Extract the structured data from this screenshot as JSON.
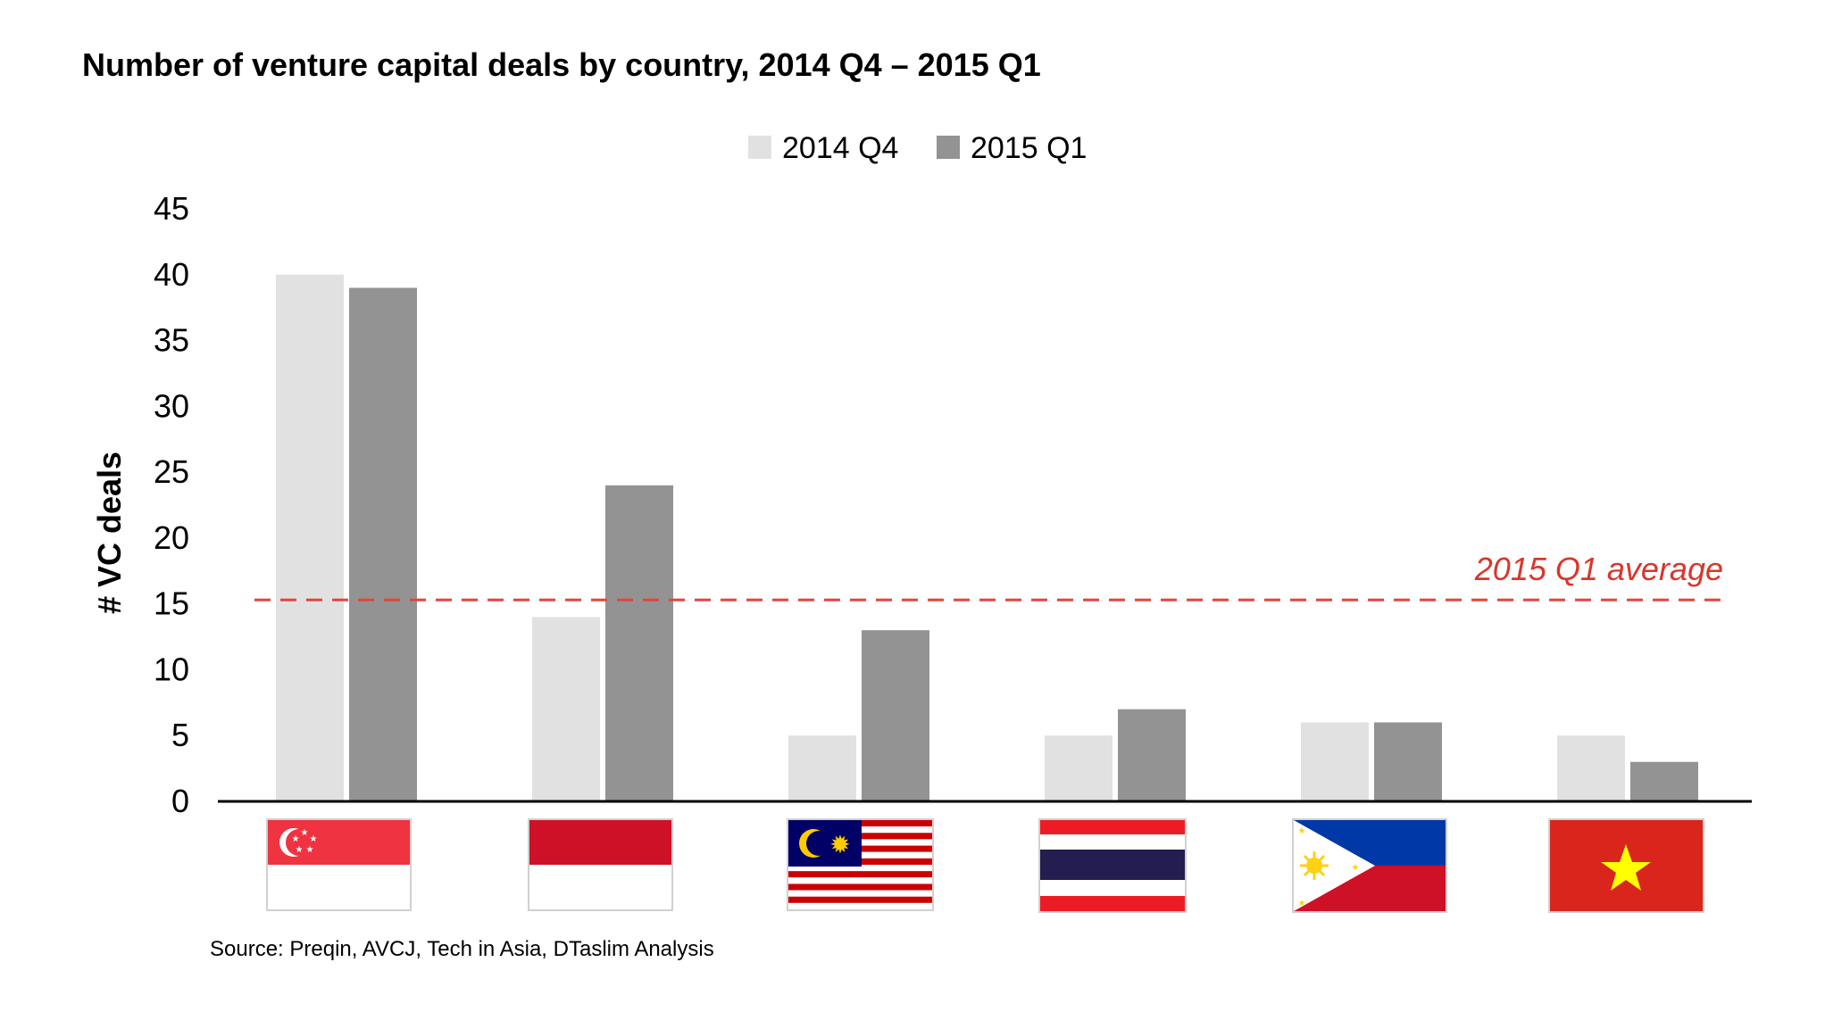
{
  "title": "Number of venture capital deals by country, 2014 Q4 – 2015 Q1",
  "source": "Source: Preqin, AVCJ, Tech in Asia, DTaslim Analysis",
  "colors": {
    "series_q4": "#e1e1e1",
    "series_q1": "#939393",
    "average_line": "#e2463a",
    "axis": "#000000"
  },
  "flag_icons": [
    "singapore-flag-icon",
    "indonesia-flag-icon",
    "malaysia-flag-icon",
    "thailand-flag-icon",
    "philippines-flag-icon",
    "vietnam-flag-icon"
  ],
  "chart_data": {
    "type": "bar",
    "title": "Number of venture capital deals by country, 2014 Q4 – 2015 Q1",
    "ylabel": "# VC deals",
    "xlabel": "",
    "ylim": [
      0,
      45
    ],
    "yticks": [
      "0",
      "5",
      "10",
      "15",
      "20",
      "25",
      "30",
      "35",
      "40",
      "45"
    ],
    "series": [
      {
        "name": "2014 Q4",
        "values": [
          40,
          14,
          5,
          5,
          6,
          5
        ]
      },
      {
        "name": "2015 Q1",
        "values": [
          39,
          24,
          13,
          7,
          6,
          3
        ]
      }
    ],
    "average_line": {
      "label": "2015 Q1 average",
      "value": 15.3
    },
    "legend_position": "top-center",
    "grid": false
  }
}
